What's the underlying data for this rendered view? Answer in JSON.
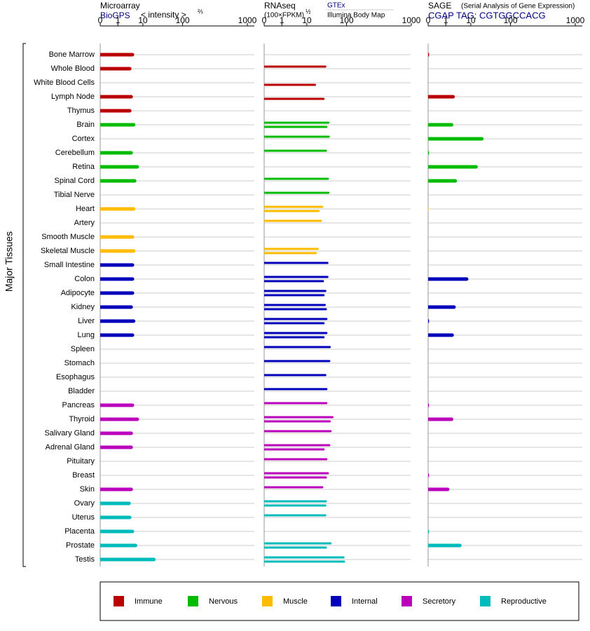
{
  "chart_data": {
    "type": "bar",
    "ylabel": "Major Tissues",
    "groups": [
      {
        "name": "Immune",
        "color": "#bb0000",
        "categories": [
          "Bone Marrow",
          "Whole Blood",
          "White Blood Cells",
          "Lymph Node",
          "Thymus"
        ]
      },
      {
        "name": "Nervous",
        "color": "#00bb00",
        "categories": [
          "Brain",
          "Cortex",
          "Cerebellum",
          "Retina",
          "Spinal Cord",
          "Tibial Nerve"
        ]
      },
      {
        "name": "Muscle",
        "color": "#ffbb00",
        "categories": [
          "Heart",
          "Artery",
          "Smooth Muscle",
          "Skeletal Muscle"
        ]
      },
      {
        "name": "Internal",
        "color": "#0000bb",
        "categories": [
          "Small Intestine",
          "Colon",
          "Adipocyte",
          "Kidney",
          "Liver",
          "Lung",
          "Spleen",
          "Stomach",
          "Esophagus",
          "Bladder"
        ]
      },
      {
        "name": "Secretory",
        "color": "#bb00bb",
        "categories": [
          "Pancreas",
          "Thyroid",
          "Salivary Gland",
          "Adrenal Gland",
          "Pituitary",
          "Breast",
          "Skin"
        ]
      },
      {
        "name": "Reproductive",
        "color": "#00bbbb",
        "categories": [
          "Ovary",
          "Uterus",
          "Placenta",
          "Prostate",
          "Testis"
        ]
      }
    ],
    "panels": [
      {
        "title": "Microarray",
        "note": "< intensity >",
        "note_power": "⅔",
        "xlim": [
          0,
          1000
        ],
        "xticks": [
          0,
          1,
          10,
          100,
          1000
        ],
        "series": [
          {
            "name": "BioGPS",
            "values": [
              4.5,
              3.5,
              null,
              4,
              3.5,
              5,
              null,
              4,
              7,
              5.5,
              null,
              5,
              null,
              4.5,
              5,
              4.5,
              4.5,
              4.5,
              4,
              5,
              4.5,
              null,
              null,
              null,
              null,
              4.5,
              7,
              4,
              4,
              null,
              null,
              4,
              3.3,
              3.5,
              4.5,
              6,
              21
            ]
          }
        ]
      },
      {
        "title": "RNAseq",
        "note": "(100×FPKM)",
        "note_power": "½",
        "xlim": [
          0,
          1000
        ],
        "xticks": [
          0,
          1,
          10,
          100,
          1000
        ],
        "series": [
          {
            "name": "GTEx",
            "values": [
              null,
              31,
              null,
              null,
              null,
              37,
              38,
              32,
              null,
              36,
              37,
              26,
              24,
              null,
              20,
              35,
              35,
              31,
              30,
              33,
              33,
              40,
              39,
              31,
              33,
              33,
              47,
              42,
              39,
              33,
              36,
              26,
              32,
              31,
              null,
              42,
              89
            ]
          },
          {
            "name": "Illumina Body Map",
            "values": [
              null,
              null,
              17,
              28,
              null,
              33,
              null,
              null,
              null,
              null,
              null,
              21,
              null,
              null,
              18,
              null,
              27,
              28,
              32,
              28,
              28,
              null,
              null,
              null,
              null,
              null,
              40,
              null,
              28,
              null,
              32,
              null,
              31,
              null,
              null,
              32,
              92
            ]
          }
        ]
      },
      {
        "title": "SAGE",
        "note": "(Serial Analysis of Gene Expression)",
        "xlim": [
          0,
          1000
        ],
        "xticks": [
          0,
          1,
          10,
          100,
          1000
        ],
        "series": [
          {
            "name": "CGAP TAG: CGTGGCCACG",
            "values": [
              0.05,
              null,
              null,
              2.3,
              null,
              2,
              21,
              0.05,
              15,
              2.8,
              null,
              0.02,
              null,
              null,
              null,
              null,
              8,
              null,
              2.5,
              0.05,
              2.1,
              null,
              null,
              null,
              null,
              0.05,
              2,
              null,
              null,
              null,
              0.05,
              1.4,
              null,
              null,
              0.05,
              4.3,
              null
            ]
          }
        ]
      }
    ]
  }
}
